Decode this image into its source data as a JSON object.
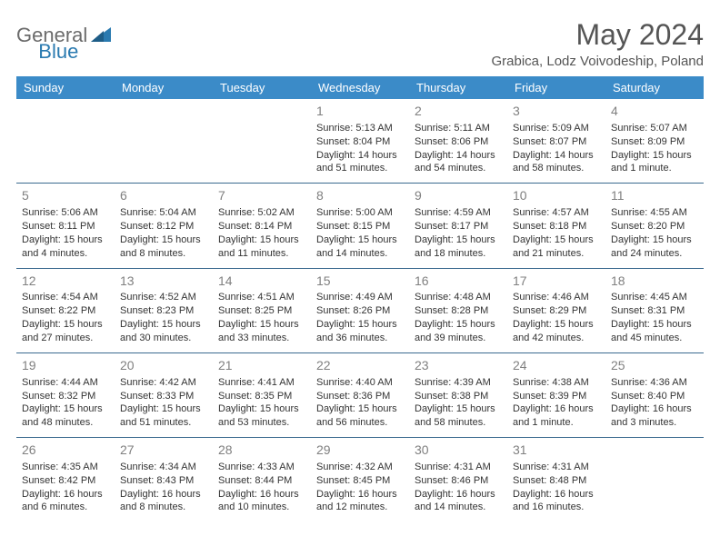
{
  "logo": {
    "part1": "General",
    "part2": "Blue"
  },
  "title": "May 2024",
  "location": "Grabica, Lodz Voivodeship, Poland",
  "colors": {
    "header_bg": "#3b8bc8",
    "header_text": "#ffffff",
    "row_border": "#3b6a8f",
    "daynum": "#808080",
    "body_text": "#333333",
    "logo_gray": "#6b6b6b",
    "logo_blue": "#2a7ab0",
    "title_color": "#555555"
  },
  "day_headers": [
    "Sunday",
    "Monday",
    "Tuesday",
    "Wednesday",
    "Thursday",
    "Friday",
    "Saturday"
  ],
  "weeks": [
    [
      null,
      null,
      null,
      {
        "n": "1",
        "sr": "Sunrise: 5:13 AM",
        "ss": "Sunset: 8:04 PM",
        "dl": "Daylight: 14 hours and 51 minutes."
      },
      {
        "n": "2",
        "sr": "Sunrise: 5:11 AM",
        "ss": "Sunset: 8:06 PM",
        "dl": "Daylight: 14 hours and 54 minutes."
      },
      {
        "n": "3",
        "sr": "Sunrise: 5:09 AM",
        "ss": "Sunset: 8:07 PM",
        "dl": "Daylight: 14 hours and 58 minutes."
      },
      {
        "n": "4",
        "sr": "Sunrise: 5:07 AM",
        "ss": "Sunset: 8:09 PM",
        "dl": "Daylight: 15 hours and 1 minute."
      }
    ],
    [
      {
        "n": "5",
        "sr": "Sunrise: 5:06 AM",
        "ss": "Sunset: 8:11 PM",
        "dl": "Daylight: 15 hours and 4 minutes."
      },
      {
        "n": "6",
        "sr": "Sunrise: 5:04 AM",
        "ss": "Sunset: 8:12 PM",
        "dl": "Daylight: 15 hours and 8 minutes."
      },
      {
        "n": "7",
        "sr": "Sunrise: 5:02 AM",
        "ss": "Sunset: 8:14 PM",
        "dl": "Daylight: 15 hours and 11 minutes."
      },
      {
        "n": "8",
        "sr": "Sunrise: 5:00 AM",
        "ss": "Sunset: 8:15 PM",
        "dl": "Daylight: 15 hours and 14 minutes."
      },
      {
        "n": "9",
        "sr": "Sunrise: 4:59 AM",
        "ss": "Sunset: 8:17 PM",
        "dl": "Daylight: 15 hours and 18 minutes."
      },
      {
        "n": "10",
        "sr": "Sunrise: 4:57 AM",
        "ss": "Sunset: 8:18 PM",
        "dl": "Daylight: 15 hours and 21 minutes."
      },
      {
        "n": "11",
        "sr": "Sunrise: 4:55 AM",
        "ss": "Sunset: 8:20 PM",
        "dl": "Daylight: 15 hours and 24 minutes."
      }
    ],
    [
      {
        "n": "12",
        "sr": "Sunrise: 4:54 AM",
        "ss": "Sunset: 8:22 PM",
        "dl": "Daylight: 15 hours and 27 minutes."
      },
      {
        "n": "13",
        "sr": "Sunrise: 4:52 AM",
        "ss": "Sunset: 8:23 PM",
        "dl": "Daylight: 15 hours and 30 minutes."
      },
      {
        "n": "14",
        "sr": "Sunrise: 4:51 AM",
        "ss": "Sunset: 8:25 PM",
        "dl": "Daylight: 15 hours and 33 minutes."
      },
      {
        "n": "15",
        "sr": "Sunrise: 4:49 AM",
        "ss": "Sunset: 8:26 PM",
        "dl": "Daylight: 15 hours and 36 minutes."
      },
      {
        "n": "16",
        "sr": "Sunrise: 4:48 AM",
        "ss": "Sunset: 8:28 PM",
        "dl": "Daylight: 15 hours and 39 minutes."
      },
      {
        "n": "17",
        "sr": "Sunrise: 4:46 AM",
        "ss": "Sunset: 8:29 PM",
        "dl": "Daylight: 15 hours and 42 minutes."
      },
      {
        "n": "18",
        "sr": "Sunrise: 4:45 AM",
        "ss": "Sunset: 8:31 PM",
        "dl": "Daylight: 15 hours and 45 minutes."
      }
    ],
    [
      {
        "n": "19",
        "sr": "Sunrise: 4:44 AM",
        "ss": "Sunset: 8:32 PM",
        "dl": "Daylight: 15 hours and 48 minutes."
      },
      {
        "n": "20",
        "sr": "Sunrise: 4:42 AM",
        "ss": "Sunset: 8:33 PM",
        "dl": "Daylight: 15 hours and 51 minutes."
      },
      {
        "n": "21",
        "sr": "Sunrise: 4:41 AM",
        "ss": "Sunset: 8:35 PM",
        "dl": "Daylight: 15 hours and 53 minutes."
      },
      {
        "n": "22",
        "sr": "Sunrise: 4:40 AM",
        "ss": "Sunset: 8:36 PM",
        "dl": "Daylight: 15 hours and 56 minutes."
      },
      {
        "n": "23",
        "sr": "Sunrise: 4:39 AM",
        "ss": "Sunset: 8:38 PM",
        "dl": "Daylight: 15 hours and 58 minutes."
      },
      {
        "n": "24",
        "sr": "Sunrise: 4:38 AM",
        "ss": "Sunset: 8:39 PM",
        "dl": "Daylight: 16 hours and 1 minute."
      },
      {
        "n": "25",
        "sr": "Sunrise: 4:36 AM",
        "ss": "Sunset: 8:40 PM",
        "dl": "Daylight: 16 hours and 3 minutes."
      }
    ],
    [
      {
        "n": "26",
        "sr": "Sunrise: 4:35 AM",
        "ss": "Sunset: 8:42 PM",
        "dl": "Daylight: 16 hours and 6 minutes."
      },
      {
        "n": "27",
        "sr": "Sunrise: 4:34 AM",
        "ss": "Sunset: 8:43 PM",
        "dl": "Daylight: 16 hours and 8 minutes."
      },
      {
        "n": "28",
        "sr": "Sunrise: 4:33 AM",
        "ss": "Sunset: 8:44 PM",
        "dl": "Daylight: 16 hours and 10 minutes."
      },
      {
        "n": "29",
        "sr": "Sunrise: 4:32 AM",
        "ss": "Sunset: 8:45 PM",
        "dl": "Daylight: 16 hours and 12 minutes."
      },
      {
        "n": "30",
        "sr": "Sunrise: 4:31 AM",
        "ss": "Sunset: 8:46 PM",
        "dl": "Daylight: 16 hours and 14 minutes."
      },
      {
        "n": "31",
        "sr": "Sunrise: 4:31 AM",
        "ss": "Sunset: 8:48 PM",
        "dl": "Daylight: 16 hours and 16 minutes."
      },
      null
    ]
  ]
}
